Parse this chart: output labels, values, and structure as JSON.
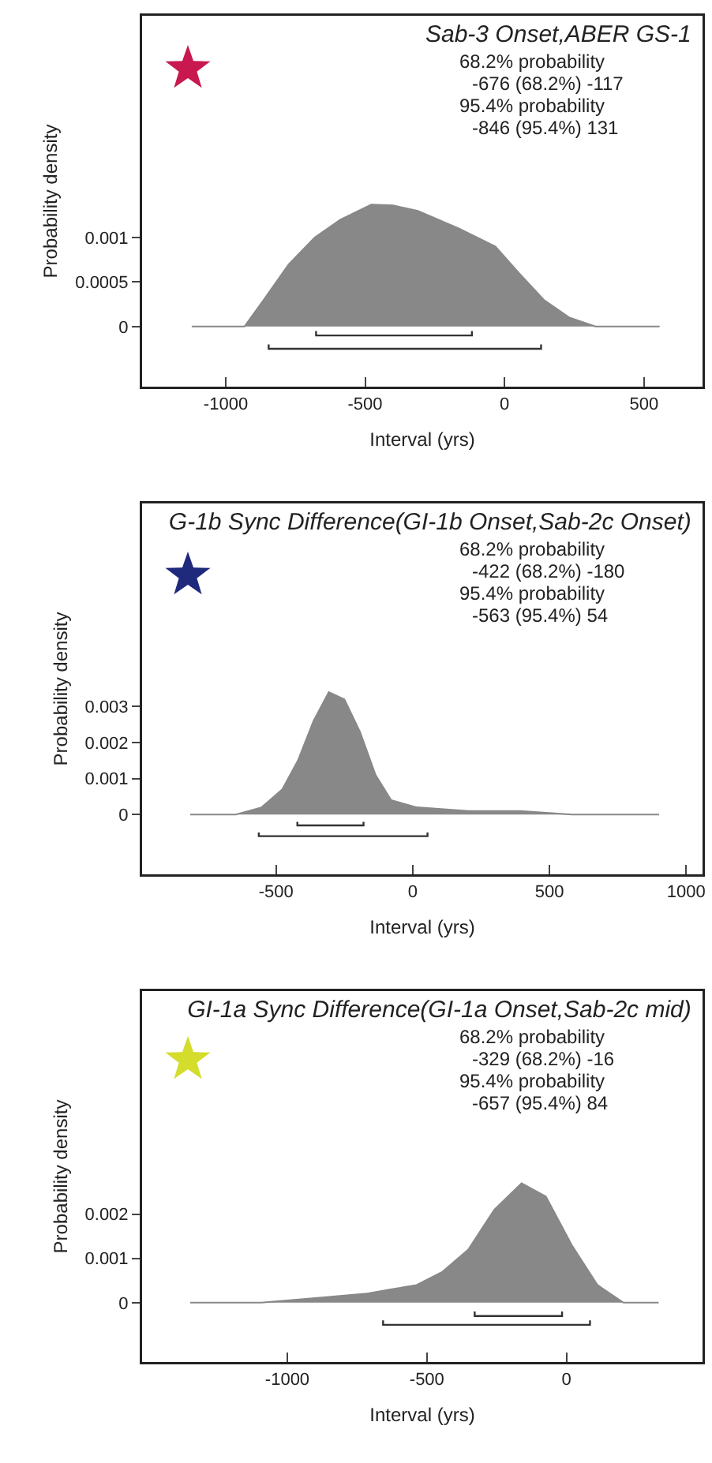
{
  "chart_data": [
    {
      "type": "area",
      "title": "Sab-3 Onset,ABER GS-1",
      "xlabel": "Interval (yrs)",
      "ylabel": "Probability density",
      "annotations": [
        "68.2% probability",
        "-676 (68.2%) -117",
        "95.4% probability",
        "-846 (95.4%) 131"
      ],
      "xlim": [
        -1300,
        710
      ],
      "xticks": [
        -1000,
        -500,
        0,
        500
      ],
      "ylim": [
        -0.000675,
        0.00349
      ],
      "yticks": [
        0,
        0.0005,
        0.001
      ],
      "grid": false,
      "series": [
        {
          "color": "#888888",
          "x": [
            -1122,
            -933,
            -864,
            -774,
            -681,
            -589,
            -478,
            -400,
            -311,
            -163,
            -33,
            52,
            141,
            233,
            326,
            556
          ],
          "values": [
            0,
            0,
            0.0003,
            0.0007,
            0.001,
            0.0012,
            0.00137,
            0.00136,
            0.0013,
            0.0011,
            0.0009,
            0.0006,
            0.0003,
            0.0001,
            0,
            0
          ]
        },
        {
          "type": "line",
          "color": "#333333",
          "x": [
            -676,
            -676,
            -117,
            -117
          ],
          "values": [
            -5e-05,
            -0.0001,
            -0.0001,
            -5e-05
          ]
        },
        {
          "type": "line",
          "color": "#333333",
          "x": [
            -846,
            -846,
            131,
            131
          ],
          "values": [
            -0.0002,
            -0.00025,
            -0.00025,
            -0.0002
          ]
        }
      ]
    },
    {
      "type": "area",
      "title": "G-1b Sync Difference(GI-1b Onset,Sab-2c Onset)",
      "xlabel": "Interval (yrs)",
      "ylabel": "Probability density",
      "annotations": [
        "68.2% probability",
        "-422 (68.2%) -180",
        "95.4% probability",
        "-563 (95.4%) 54"
      ],
      "xlim": [
        -990,
        1060
      ],
      "xticks": [
        -500,
        0,
        500,
        1000
      ],
      "ylim": [
        -0.00166,
        0.00864
      ],
      "yticks": [
        0,
        0.001,
        0.002,
        0.003
      ],
      "grid": false,
      "series": [
        {
          "color": "#888888",
          "x": [
            -814,
            -647,
            -553,
            -477,
            -420,
            -363,
            -307,
            -250,
            -193,
            -136,
            -79,
            15,
            204,
            394,
            583,
            901
          ],
          "values": [
            0,
            0,
            0.0002,
            0.0007,
            0.0015,
            0.0026,
            0.0034,
            0.0032,
            0.0023,
            0.0011,
            0.0004,
            0.0002,
            0.0001,
            0.0001,
            0,
            0
          ]
        },
        {
          "type": "line",
          "color": "#333333",
          "x": [
            -422,
            -422,
            -180,
            -180
          ],
          "values": [
            -0.0002,
            -0.0003,
            -0.0003,
            -0.0002
          ]
        },
        {
          "type": "line",
          "color": "#333333",
          "x": [
            -563,
            -563,
            54,
            54
          ],
          "values": [
            -0.0005,
            -0.0006,
            -0.0006,
            -0.0005
          ]
        }
      ]
    },
    {
      "type": "area",
      "title": "GI-1a Sync Difference(GI-1a Onset,Sab-2c mid)",
      "xlabel": "Interval (yrs)",
      "ylabel": "Probability density",
      "annotations": [
        "68.2% probability",
        "-329 (68.2%) -16",
        "95.4% probability",
        "-657 (95.4%) 84"
      ],
      "xlim": [
        -1520,
        487
      ],
      "xticks": [
        -1000,
        -500,
        0
      ],
      "ylim": [
        -0.00134,
        0.00704
      ],
      "yticks": [
        0,
        0.001,
        0.002
      ],
      "grid": false,
      "series": [
        {
          "color": "#888888",
          "x": [
            -1348,
            -1093,
            -908,
            -722,
            -630,
            -537,
            -444,
            -352,
            -259,
            -161,
            -74,
            19,
            111,
            204,
            330
          ],
          "values": [
            0,
            0,
            0.0001,
            0.0002,
            0.0003,
            0.0004,
            0.0007,
            0.0012,
            0.0021,
            0.0027,
            0.0024,
            0.0013,
            0.0004,
            0,
            0
          ]
        },
        {
          "type": "line",
          "color": "#333333",
          "x": [
            -329,
            -329,
            -16,
            -16
          ],
          "values": [
            -0.0002,
            -0.0003,
            -0.0003,
            -0.0002
          ]
        },
        {
          "type": "line",
          "color": "#333333",
          "x": [
            -657,
            -657,
            84,
            84
          ],
          "values": [
            -0.0004,
            -0.0005,
            -0.0005,
            -0.0004
          ]
        }
      ]
    }
  ]
}
